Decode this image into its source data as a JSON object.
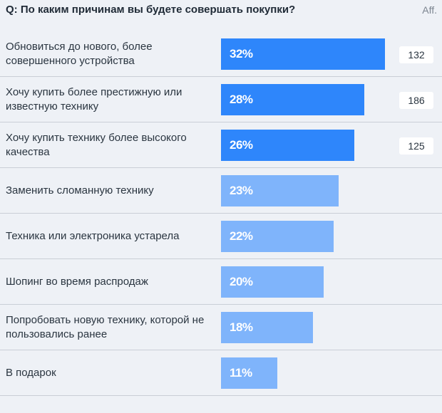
{
  "title": "Q: По каким причинам вы будете совершать покупки?",
  "aff_label": "Aff.",
  "colors": {
    "bar_primary": "#2e86fb",
    "bar_secondary": "#7fb4fb"
  },
  "chart_data": {
    "type": "bar",
    "orientation": "horizontal",
    "categories": [
      "Обновиться до нового, более совершенного устройства",
      "Хочу купить более престижную или известную технику",
      "Хочу купить технику более высокого качества",
      "Заменить сломанную технику",
      "Техника или электроника устарела",
      "Шопинг во время распродаж",
      "Попробовать новую технику, которой не пользовались ранее",
      "В подарок"
    ],
    "values": [
      32,
      28,
      26,
      23,
      22,
      20,
      18,
      11
    ],
    "value_labels": [
      "32%",
      "28%",
      "26%",
      "23%",
      "22%",
      "20%",
      "18%",
      "11%"
    ],
    "affinity": [
      132,
      186,
      125,
      null,
      null,
      null,
      null,
      null
    ],
    "highlighted": [
      true,
      true,
      true,
      false,
      false,
      false,
      false,
      false
    ],
    "xlim": [
      0,
      32
    ]
  }
}
